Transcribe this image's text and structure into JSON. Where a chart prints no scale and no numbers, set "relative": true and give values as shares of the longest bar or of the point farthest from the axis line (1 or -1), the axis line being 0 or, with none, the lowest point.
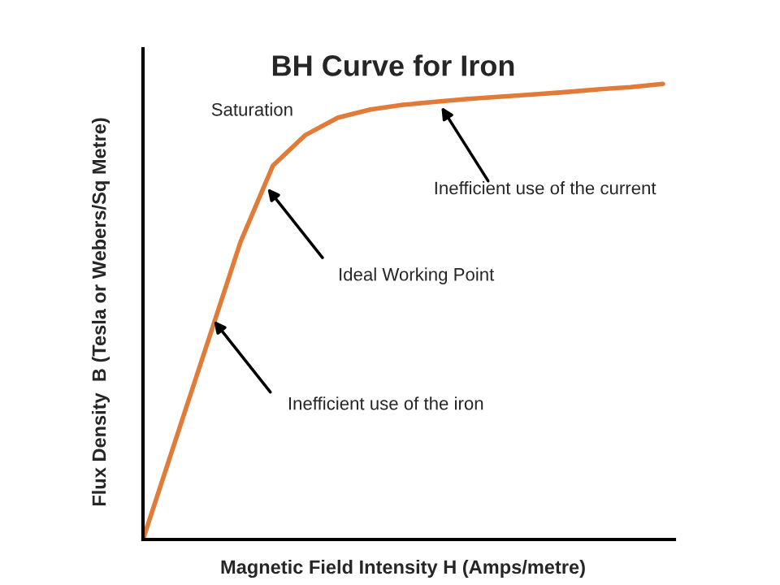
{
  "chart_data": {
    "type": "line",
    "title": "BH Curve for Iron",
    "xlabel": "Magnetic Field Intensity H (Amps/metre)",
    "ylabel": "Flux Density  B (Tesla or Webers/Sq Metre)",
    "relative": true,
    "categories": [
      null,
      null,
      null,
      null,
      null,
      null,
      null,
      null,
      null,
      null,
      null,
      null,
      null,
      null,
      null,
      null,
      null
    ],
    "series": [
      {
        "color": "#e07b39",
        "values": [
          0,
          0.218,
          0.435,
          0.653,
          0.821,
          0.888,
          0.926,
          0.944,
          0.954,
          0.961,
          0.967,
          0.972,
          0.977,
          0.982,
          0.988,
          0.993,
          1
        ]
      }
    ],
    "annotations": [
      "Saturation",
      "Inefficient use of the current",
      "Ideal Working Point",
      "Inefficient use of the iron"
    ],
    "grid": false,
    "legend": false,
    "marker": "none",
    "line_style": "solid"
  }
}
